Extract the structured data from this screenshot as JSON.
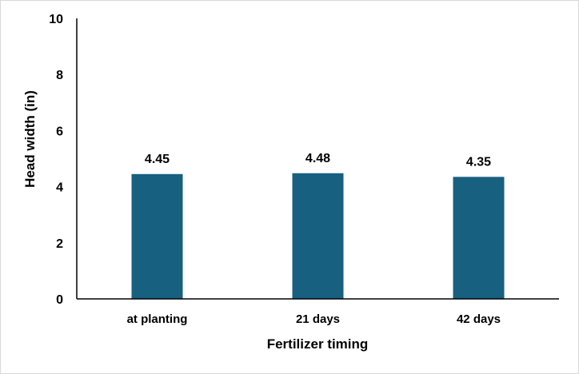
{
  "chart_data": {
    "type": "bar",
    "categories": [
      "at planting",
      "21 days",
      "42 days"
    ],
    "values": [
      4.45,
      4.48,
      4.35
    ],
    "data_labels": [
      "4.45",
      "4.48",
      "4.35"
    ],
    "title": "",
    "xlabel": "Fertilizer timing",
    "ylabel": "Head width (in)",
    "ylim": [
      0,
      10
    ],
    "yticks": [
      0,
      2,
      4,
      6,
      8,
      10
    ],
    "grid": false,
    "legend": "none",
    "bar_color": "#17607f",
    "axis_color": "#000000"
  }
}
